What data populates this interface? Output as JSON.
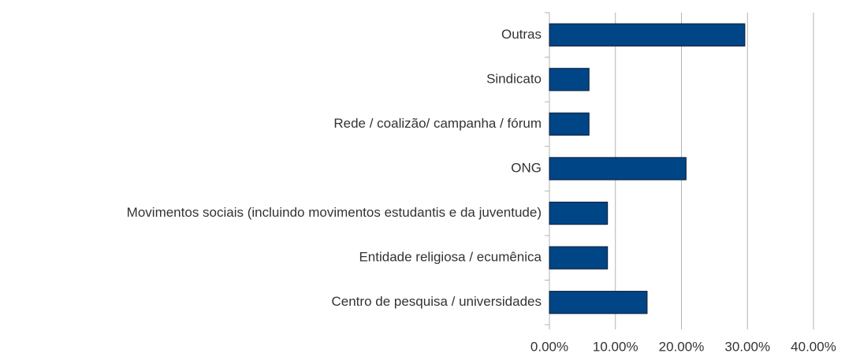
{
  "chart_data": {
    "type": "bar",
    "orientation": "horizontal",
    "categories": [
      "Outras",
      "Sindicato",
      "Rede / coalizão/ campanha / fórum",
      "ONG",
      "Movimentos sociais (incluindo movimentos estudantis e da juventude)",
      "Entidade religiosa / ecumênica",
      "Centro de pesquisa / universidades"
    ],
    "values": [
      29.6,
      6.0,
      6.0,
      20.7,
      8.8,
      8.8,
      14.8
    ],
    "color": "#004586",
    "xlim": [
      0,
      40
    ],
    "xticks": [
      {
        "value": 0,
        "label": "0.00%"
      },
      {
        "value": 10,
        "label": "10.00%"
      },
      {
        "value": 20,
        "label": "20.00%"
      },
      {
        "value": 30,
        "label": "30.00%"
      },
      {
        "value": 40,
        "label": "40.00%"
      }
    ],
    "grid": true
  }
}
